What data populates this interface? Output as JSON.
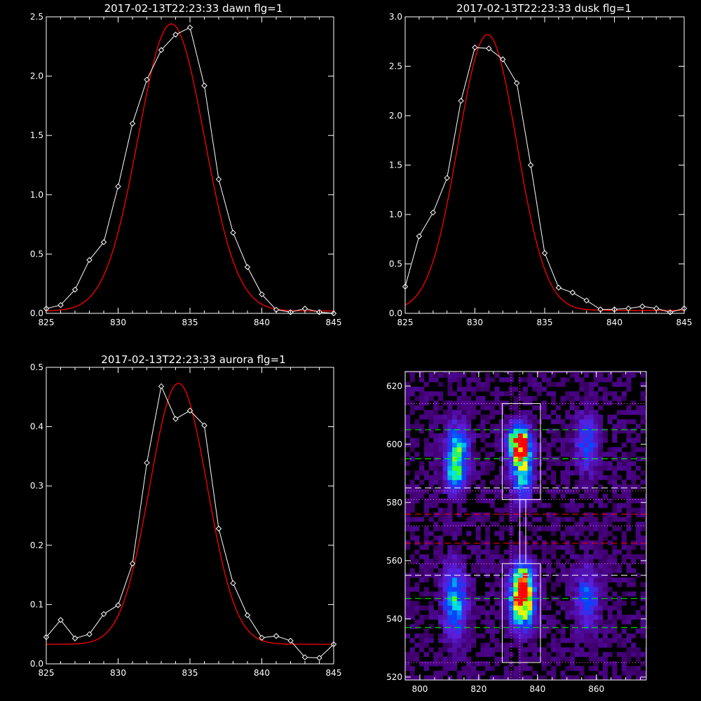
{
  "chart_data": [
    {
      "type": "line",
      "title": "2017-02-13T22:23:33 dawn flg=1",
      "xlim": [
        825,
        845
      ],
      "ylim": [
        0,
        2.5
      ],
      "xticks": [
        "825",
        "830",
        "835",
        "840",
        "845"
      ],
      "yticks": [
        "0.0",
        "0.5",
        "1.0",
        "1.5",
        "2.0",
        "2.5"
      ],
      "series": [
        {
          "kind": "data",
          "color": "#ffffff",
          "marker": "diamond",
          "x": [
            825,
            826,
            827,
            828,
            829,
            830,
            831,
            832,
            833,
            834,
            835,
            836,
            837,
            838,
            839,
            840,
            841,
            842,
            843,
            844,
            845
          ],
          "y": [
            0.04,
            0.07,
            0.2,
            0.45,
            0.6,
            1.07,
            1.6,
            1.97,
            2.22,
            2.35,
            2.41,
            1.92,
            1.13,
            0.68,
            0.39,
            0.16,
            0.03,
            0.01,
            0.04,
            0.01,
            0.0
          ]
        },
        {
          "kind": "fit",
          "color": "#ff0000",
          "model": "gaussian",
          "amp": 2.42,
          "center": 833.7,
          "sigma": 2.3,
          "offset": 0.02
        }
      ]
    },
    {
      "type": "line",
      "title": "2017-02-13T22:23:33 dusk flg=1",
      "xlim": [
        825,
        845
      ],
      "ylim": [
        0,
        3.0
      ],
      "xticks": [
        "825",
        "830",
        "835",
        "840",
        "845"
      ],
      "yticks": [
        "0.0",
        "0.5",
        "1.0",
        "1.5",
        "2.0",
        "2.5",
        "3.0"
      ],
      "series": [
        {
          "kind": "data",
          "color": "#ffffff",
          "marker": "diamond",
          "x": [
            825,
            826,
            827,
            828,
            829,
            830,
            831,
            832,
            833,
            834,
            835,
            836,
            837,
            838,
            839,
            840,
            841,
            842,
            843,
            844,
            845
          ],
          "y": [
            0.27,
            0.78,
            1.02,
            1.37,
            2.15,
            2.69,
            2.68,
            2.57,
            2.33,
            1.5,
            0.61,
            0.26,
            0.21,
            0.13,
            0.04,
            0.04,
            0.05,
            0.07,
            0.05,
            0.01,
            0.05
          ]
        },
        {
          "kind": "fit",
          "color": "#ff0000",
          "model": "gaussian",
          "amp": 2.79,
          "center": 830.9,
          "sigma": 2.1,
          "offset": 0.03
        }
      ]
    },
    {
      "type": "line",
      "title": "2017-02-13T22:23:33 aurora flg=1",
      "xlim": [
        825,
        845
      ],
      "ylim": [
        0,
        0.5
      ],
      "xticks": [
        "825",
        "830",
        "835",
        "840",
        "845"
      ],
      "yticks": [
        "0.0",
        "0.1",
        "0.2",
        "0.3",
        "0.4",
        "0.5"
      ],
      "series": [
        {
          "kind": "data",
          "color": "#ffffff",
          "marker": "diamond",
          "x": [
            825,
            826,
            827,
            828,
            829,
            830,
            831,
            832,
            833,
            834,
            835,
            836,
            837,
            838,
            839,
            840,
            841,
            842,
            843,
            844,
            845
          ],
          "y": [
            0.045,
            0.074,
            0.043,
            0.05,
            0.084,
            0.099,
            0.169,
            0.339,
            0.468,
            0.413,
            0.427,
            0.402,
            0.228,
            0.136,
            0.082,
            0.044,
            0.047,
            0.039,
            0.011,
            0.01,
            0.033
          ]
        },
        {
          "kind": "fit",
          "color": "#ff0000",
          "model": "gaussian",
          "amp": 0.44,
          "center": 834.2,
          "sigma": 2.0,
          "offset": 0.033
        }
      ]
    },
    {
      "type": "heatmap",
      "title": "",
      "xlim": [
        795,
        877
      ],
      "ylim": [
        519,
        625
      ],
      "xticks": [
        "800",
        "820",
        "840",
        "860"
      ],
      "yticks": [
        "520",
        "540",
        "560",
        "580",
        "600",
        "620"
      ],
      "blobs": [
        {
          "x": 812,
          "y": 597,
          "sx": 2.6,
          "sy": 6,
          "amp": 0.58
        },
        {
          "x": 811,
          "y": 588,
          "sx": 2.2,
          "sy": 4,
          "amp": 0.38
        },
        {
          "x": 811,
          "y": 545,
          "sx": 2.6,
          "sy": 8,
          "amp": 0.52
        },
        {
          "x": 833,
          "y": 600,
          "sx": 2.4,
          "sy": 4,
          "amp": 1.0
        },
        {
          "x": 834,
          "y": 590,
          "sx": 2.4,
          "sy": 6,
          "amp": 0.62
        },
        {
          "x": 834,
          "y": 545,
          "sx": 2.6,
          "sy": 6,
          "amp": 0.96
        },
        {
          "x": 834,
          "y": 552,
          "sx": 2.4,
          "sy": 5,
          "amp": 0.55
        },
        {
          "x": 856,
          "y": 600,
          "sx": 2.6,
          "sy": 7,
          "amp": 0.32
        },
        {
          "x": 856,
          "y": 546,
          "sx": 2.6,
          "sy": 7,
          "amp": 0.36
        }
      ],
      "vlines": [
        {
          "x": 831,
          "color": "#ff66ff",
          "style": "dotted"
        },
        {
          "x": 834,
          "color": "#ff66ff",
          "style": "dotted"
        }
      ],
      "hlines": [
        {
          "y": 614,
          "color": "#ff66ff",
          "style": "dotted"
        },
        {
          "y": 605,
          "color": "#00ff00",
          "style": "dashed"
        },
        {
          "y": 595,
          "color": "#00ff00",
          "style": "dashed"
        },
        {
          "y": 585,
          "color": "#ffffff",
          "style": "dashed"
        },
        {
          "y": 584,
          "color": "#ff66ff",
          "style": "dotted"
        },
        {
          "y": 581,
          "color": "#ff66ff",
          "style": "dotted"
        },
        {
          "y": 576,
          "color": "#ff0000",
          "style": "dashed"
        },
        {
          "y": 572,
          "color": "#ff66ff",
          "style": "dotted"
        },
        {
          "y": 566,
          "color": "#ff0000",
          "style": "dashed"
        },
        {
          "y": 559,
          "color": "#ff66ff",
          "style": "dotted"
        },
        {
          "y": 555,
          "color": "#ffffff",
          "style": "dashed"
        },
        {
          "y": 547,
          "color": "#00ff00",
          "style": "dashed"
        },
        {
          "y": 537,
          "color": "#00ff00",
          "style": "dashed"
        },
        {
          "y": 525,
          "color": "#ff66ff",
          "style": "dotted"
        }
      ],
      "boxes": [
        {
          "x0": 828,
          "x1": 841,
          "y0": 581,
          "y1": 614,
          "color": "#ffffff"
        },
        {
          "x0": 828,
          "x1": 841,
          "y0": 525,
          "y1": 559,
          "color": "#ffffff"
        },
        {
          "x0": 834,
          "x1": 836,
          "y0": 559,
          "y1": 581,
          "color": "#ffffff"
        }
      ]
    }
  ]
}
